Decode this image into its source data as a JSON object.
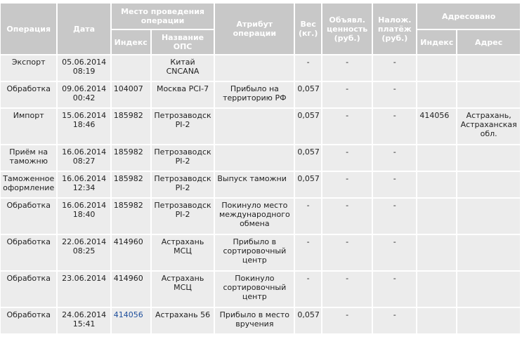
{
  "headers": {
    "operation": "Операция",
    "date": "Дата",
    "place": "Место проведения операции",
    "place_index": "Индекс",
    "place_name": "Название ОПС",
    "attribute": "Атрибут операции",
    "weight": "Вес (кг.)",
    "declared_value": "Объявл. ценность (руб.)",
    "cod": "Налож. платёж (руб.)",
    "addressed": "Адресовано",
    "addr_index": "Индекс",
    "addr_address": "Адрес"
  },
  "rows": [
    {
      "operation": "Экспорт",
      "date": "05.06.2014 08:19",
      "index": "",
      "ops": "Китай CNCANA",
      "attribute": "",
      "weight": "-",
      "declared": "-",
      "cod": "-",
      "addr_index": "",
      "address": ""
    },
    {
      "operation": "Обработка",
      "date": "09.06.2014 00:42",
      "index": "104007",
      "ops": "Москва PCI-7",
      "attribute": "Прибыло на территорию РФ",
      "weight": "0,057",
      "declared": "-",
      "cod": "-",
      "addr_index": "",
      "address": ""
    },
    {
      "operation": "Импорт",
      "date": "15.06.2014 18:46",
      "index": "185982",
      "ops": "Петрозаводск PI-2",
      "attribute": "",
      "weight": "0,057",
      "declared": "-",
      "cod": "-",
      "addr_index": "414056",
      "address": "Астрахань, Астраханская обл."
    },
    {
      "operation": "Приём на таможню",
      "date": "16.06.2014 08:27",
      "index": "185982",
      "ops": "Петрозаводск PI-2",
      "attribute": "",
      "weight": "0,057",
      "declared": "-",
      "cod": "-",
      "addr_index": "",
      "address": ""
    },
    {
      "operation": "Таможенное оформление",
      "date": "16.06.2014 12:34",
      "index": "185982",
      "ops": "Петрозаводск PI-2",
      "attribute": "Выпуск таможни",
      "weight": "0,057",
      "declared": "-",
      "cod": "-",
      "addr_index": "",
      "address": ""
    },
    {
      "operation": "Обработка",
      "date": "16.06.2014 18:40",
      "index": "185982",
      "ops": "Петрозаводск PI-2",
      "attribute": "Покинуло место международного обмена",
      "weight": "-",
      "declared": "-",
      "cod": "-",
      "addr_index": "",
      "address": ""
    },
    {
      "operation": "Обработка",
      "date": "22.06.2014 08:25",
      "index": "414960",
      "ops": "Астрахань МСЦ",
      "attribute": "Прибыло в сортировочный центр",
      "weight": "-",
      "declared": "-",
      "cod": "-",
      "addr_index": "",
      "address": ""
    },
    {
      "operation": "Обработка",
      "date": "23.06.2014",
      "index": "414960",
      "ops": "Астрахань МСЦ",
      "attribute": "Покинуло сортировочный центр",
      "weight": "-",
      "declared": "-",
      "cod": "-",
      "addr_index": "",
      "address": ""
    },
    {
      "operation": "Обработка",
      "date": "24.06.2014 15:41",
      "index": "414056",
      "ops": "Астрахань 56",
      "attribute": "Прибыло в место вручения",
      "weight": "0,057",
      "declared": "-",
      "cod": "-",
      "addr_index": "",
      "address": ""
    }
  ]
}
